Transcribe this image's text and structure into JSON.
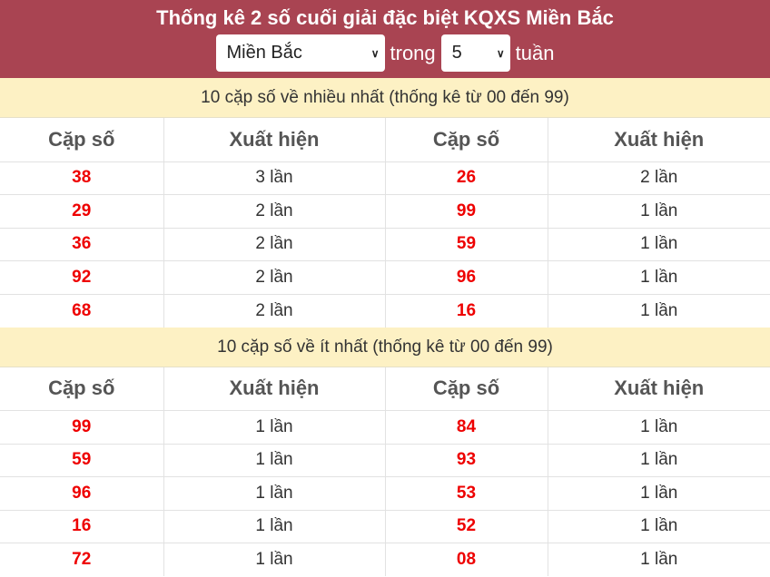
{
  "header": {
    "title": "Thống kê 2 số cuối giải đặc biệt KQXS Miền Bắc",
    "region": "Miền Bắc",
    "in_label": "trong",
    "weeks": "5",
    "weeks_label": "tuần"
  },
  "columns": [
    "Cặp số",
    "Xuất hiện",
    "Cặp số",
    "Xuất hiện"
  ],
  "most": {
    "title": "10 cặp số về nhiều nhất (thống kê từ 00 đến 99)",
    "rows": [
      [
        "38",
        "3 lần",
        "26",
        "2 lần"
      ],
      [
        "29",
        "2 lần",
        "99",
        "1 lần"
      ],
      [
        "36",
        "2 lần",
        "59",
        "1 lần"
      ],
      [
        "92",
        "2 lần",
        "96",
        "1 lần"
      ],
      [
        "68",
        "2 lần",
        "16",
        "1 lần"
      ]
    ]
  },
  "least": {
    "title": "10 cặp số về ít nhất (thống kê từ 00 đến 99)",
    "rows": [
      [
        "99",
        "1 lần",
        "84",
        "1 lần"
      ],
      [
        "59",
        "1 lần",
        "93",
        "1 lần"
      ],
      [
        "96",
        "1 lần",
        "53",
        "1 lần"
      ],
      [
        "16",
        "1 lần",
        "52",
        "1 lần"
      ],
      [
        "72",
        "1 lần",
        "08",
        "1 lần"
      ]
    ]
  },
  "colors": {
    "header": "#a94452",
    "band": "#fdf1c4",
    "number": "#ee0000"
  }
}
